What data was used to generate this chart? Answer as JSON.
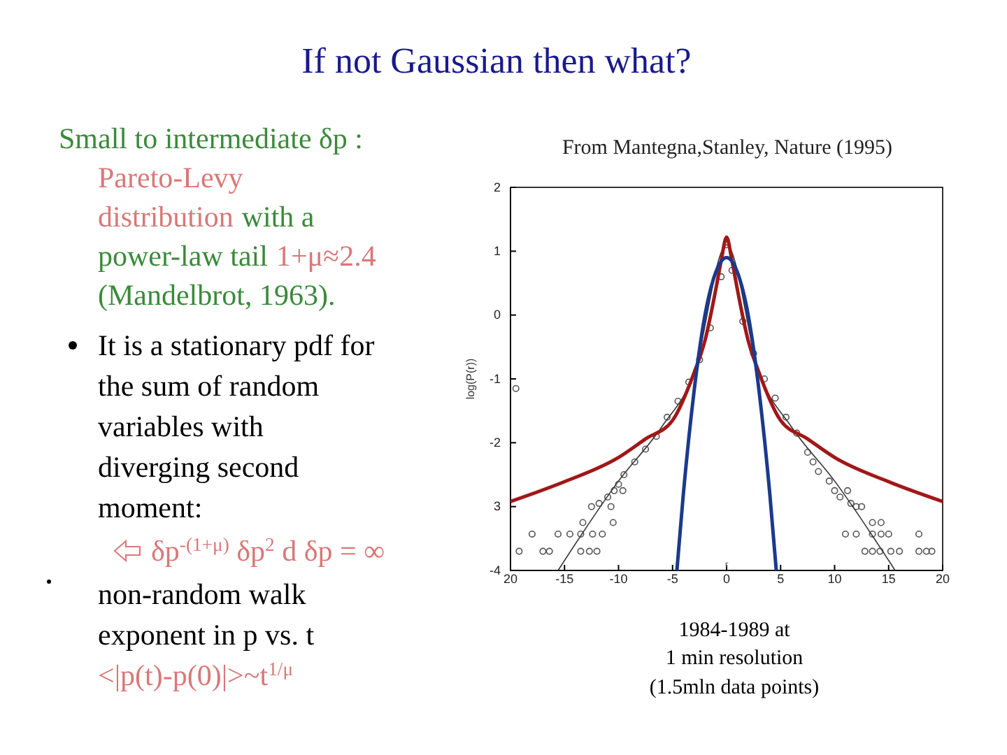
{
  "chart_data": {
    "type": "line",
    "title": "If not Gaussian then what?",
    "subtitle": "From Mantegna,Stanley, Nature (1995)",
    "xlabel": "r",
    "ylabel": "log(P(r))",
    "xlim": [
      -20,
      20
    ],
    "xticks": [
      {
        "value": -20,
        "label": "20"
      },
      -15,
      -10,
      -5,
      0,
      5,
      10,
      15,
      20
    ],
    "ylim": [
      -4,
      2
    ],
    "yticks": [
      -4,
      {
        "value": -3,
        "label": "3"
      },
      -2,
      -1,
      0,
      1,
      2
    ],
    "grid": false,
    "series": [
      {
        "type": "scatter",
        "color": "#555555",
        "marker": "circle",
        "x": [
          -19.5,
          -19.2,
          -18,
          -17,
          -16.4,
          -15.6,
          -14.5,
          -13.5,
          -13.3,
          -13.5,
          -12.7,
          -12.4,
          -12,
          -11.5,
          -12.5,
          -11.8,
          -11,
          -10.4,
          -10,
          -9.6,
          -10.7,
          -10.5,
          -9.5,
          -8.5,
          -7.5,
          -6.5,
          -5.5,
          -4.5,
          -3.5,
          -2.5,
          -1.5,
          -0.5,
          0,
          0.5,
          1.5,
          2.5,
          3.5,
          4.5,
          5.5,
          6.5,
          7.5,
          8,
          8.5,
          9.5,
          10,
          10.5,
          11.2,
          11.5,
          12,
          12.5,
          11,
          12,
          13.5,
          14.3,
          15,
          17.8,
          13.5,
          14.3,
          12.8,
          13.5,
          14.2,
          15.2,
          16,
          17.8,
          18.5,
          19
        ],
        "values": [
          -1.15,
          -3.7,
          -3.43,
          -3.7,
          -3.7,
          -3.43,
          -3.43,
          -3.43,
          -3.25,
          -3.7,
          -3.7,
          -3.43,
          -3.7,
          -3.43,
          -3,
          -2.95,
          -2.85,
          -2.75,
          -2.65,
          -2.75,
          -3,
          -3.25,
          -2.5,
          -2.3,
          -2.1,
          -1.9,
          -1.6,
          -1.35,
          -1.05,
          -0.7,
          -0.2,
          0.6,
          1.1,
          0.7,
          -0.1,
          -0.6,
          -1,
          -1.3,
          -1.6,
          -1.85,
          -2.15,
          -2.3,
          -2.45,
          -2.6,
          -2.75,
          -2.85,
          -2.75,
          -2.95,
          -3,
          -3,
          -3.43,
          -3.43,
          -3.43,
          -3.43,
          -3.43,
          -3.43,
          -3.25,
          -3.25,
          -3.7,
          -3.7,
          -3.7,
          -3.7,
          -3.7,
          -3.7,
          -3.7,
          -3.7
        ]
      },
      {
        "color": "#333333",
        "line_style": "solid",
        "x": [
          -15.6,
          -10,
          -6,
          -3,
          0,
          3,
          6,
          10,
          15.6
        ],
        "values": [
          -4,
          -2.6,
          -1.75,
          -0.9,
          1.1,
          -0.9,
          -1.75,
          -2.6,
          -4
        ]
      },
      {
        "color": "#a01818",
        "line_style": "solid",
        "x": [
          -20,
          -15,
          -10,
          -7.5,
          -5,
          -3,
          -2,
          -1,
          -0.5,
          0,
          0.5,
          1,
          2,
          3,
          5,
          7.5,
          10,
          15,
          20
        ],
        "values": [
          -2.92,
          -2.61,
          -2.23,
          -1.94,
          -1.65,
          -0.9,
          -0.4,
          0.4,
          0.85,
          1.22,
          0.85,
          0.4,
          -0.4,
          -0.9,
          -1.65,
          -1.94,
          -2.23,
          -2.61,
          -2.92
        ]
      },
      {
        "color": "#1a3a8c",
        "line_style": "solid",
        "x": [
          -4.6,
          -4,
          -3,
          -2,
          -1,
          0,
          1,
          2,
          3,
          4,
          4.6
        ],
        "values": [
          -4,
          -2.8,
          -1.18,
          0.0,
          0.67,
          0.9,
          0.67,
          0.0,
          -1.18,
          -2.8,
          -4
        ]
      }
    ],
    "annotations": [
      "Small to intermediate δp :",
      "Pareto-Levy",
      "distribution",
      "with a",
      "power-law tail",
      "1+μ≈2.4",
      "(Mandelbrot, 1963).",
      "It is a stationary pdf for",
      "the sum of random",
      "variables with",
      "diverging second",
      "moment:",
      "δp$^{-(1+μ)}$ δp$^{2}$ d δp = ∞",
      "non-random walk",
      "exponent in p vs. t",
      "<|p(t)-p(0)|>~t$^{1/μ}$",
      "1984-1989 at",
      "1 min resolution",
      "(1.5mln data points)"
    ]
  }
}
